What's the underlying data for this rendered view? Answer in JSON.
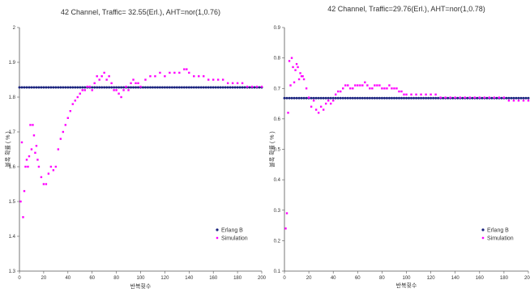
{
  "colors": {
    "erlang": "#1a237e",
    "simulation": "#ff00ff",
    "axis": "#555555",
    "text": "#333333"
  },
  "chart_data": [
    {
      "type": "line",
      "title": "42 Channel, Traffic= 32.55(Erl.), AHT=nor(1,0.76)",
      "xlabel": "반복횟수",
      "ylabel": "블록 확률 ( % )",
      "xlim": [
        0,
        200
      ],
      "ylim": [
        1.3,
        2.0
      ],
      "x_ticks": [
        0,
        20,
        40,
        60,
        80,
        100,
        120,
        140,
        160,
        180,
        200
      ],
      "y_ticks": [
        1.3,
        1.4,
        1.5,
        1.6,
        1.7,
        1.8,
        1.9,
        2.0
      ],
      "x_tick_labels": [
        "0",
        "20",
        "40",
        "60",
        "80",
        "100",
        "120",
        "140",
        "160",
        "180",
        "200"
      ],
      "y_tick_labels": [
        "1.3",
        "1.4",
        "1.5",
        "1.6",
        "1.7",
        "1.8",
        "1.9",
        "2"
      ],
      "legend_position": "lower-right",
      "grid": false,
      "series": [
        {
          "name": "Erlang B",
          "style": "line-markers",
          "constant": 1.828
        },
        {
          "name": "Simulation",
          "style": "markers",
          "x": [
            1,
            2,
            3,
            4,
            5,
            6,
            7,
            8,
            9,
            10,
            11,
            12,
            13,
            14,
            15,
            16,
            18,
            20,
            22,
            24,
            26,
            28,
            30,
            32,
            34,
            36,
            38,
            40,
            42,
            44,
            46,
            48,
            50,
            52,
            54,
            56,
            58,
            60,
            62,
            64,
            66,
            68,
            70,
            72,
            74,
            76,
            78,
            80,
            82,
            84,
            86,
            88,
            90,
            92,
            94,
            96,
            98,
            100,
            104,
            108,
            112,
            116,
            120,
            124,
            128,
            132,
            136,
            138,
            140,
            144,
            148,
            152,
            156,
            160,
            164,
            168,
            172,
            176,
            180,
            184,
            188,
            192,
            196,
            200
          ],
          "y": [
            1.5,
            1.67,
            1.455,
            1.53,
            1.6,
            1.62,
            1.6,
            1.63,
            1.72,
            1.65,
            1.72,
            1.69,
            1.64,
            1.66,
            1.62,
            1.6,
            1.57,
            1.55,
            1.55,
            1.58,
            1.6,
            1.59,
            1.6,
            1.65,
            1.68,
            1.7,
            1.72,
            1.74,
            1.76,
            1.78,
            1.79,
            1.8,
            1.81,
            1.82,
            1.82,
            1.83,
            1.83,
            1.82,
            1.84,
            1.86,
            1.85,
            1.86,
            1.87,
            1.85,
            1.86,
            1.84,
            1.82,
            1.82,
            1.81,
            1.8,
            1.82,
            1.83,
            1.82,
            1.84,
            1.85,
            1.84,
            1.84,
            1.83,
            1.85,
            1.86,
            1.86,
            1.87,
            1.86,
            1.87,
            1.87,
            1.87,
            1.88,
            1.88,
            1.87,
            1.86,
            1.86,
            1.86,
            1.85,
            1.85,
            1.85,
            1.85,
            1.84,
            1.84,
            1.84,
            1.84,
            1.83,
            1.83,
            1.83,
            1.83
          ]
        }
      ]
    },
    {
      "type": "line",
      "title": "42 Channel, Traffic=29.76(Erl.), AHT=nor(1,0.78)",
      "xlabel": "반복횟수",
      "ylabel": "블록 확률 ( % )",
      "xlim": [
        0,
        200
      ],
      "ylim": [
        0.1,
        0.9
      ],
      "x_ticks": [
        0,
        20,
        40,
        60,
        80,
        100,
        120,
        140,
        160,
        180,
        200
      ],
      "y_ticks": [
        0.1,
        0.2,
        0.3,
        0.4,
        0.5,
        0.6,
        0.7,
        0.8,
        0.9
      ],
      "x_tick_labels": [
        "0",
        "20",
        "40",
        "60",
        "80",
        "100",
        "120",
        "140",
        "160",
        "180",
        "200"
      ],
      "y_tick_labels": [
        "0.1",
        "0.2",
        "0.3",
        "0.4",
        "0.5",
        "0.6",
        "0.7",
        "0.8",
        "0.9"
      ],
      "legend_position": "lower-right",
      "grid": false,
      "series": [
        {
          "name": "Erlang B",
          "style": "line-markers",
          "constant": 0.668
        },
        {
          "name": "Simulation",
          "style": "markers",
          "x": [
            1,
            2,
            3,
            4,
            5,
            6,
            7,
            8,
            9,
            10,
            11,
            12,
            13,
            14,
            15,
            16,
            18,
            20,
            22,
            24,
            26,
            28,
            30,
            32,
            34,
            36,
            38,
            40,
            42,
            44,
            46,
            48,
            50,
            52,
            54,
            56,
            58,
            60,
            62,
            64,
            66,
            68,
            70,
            72,
            74,
            76,
            78,
            80,
            82,
            84,
            86,
            88,
            90,
            92,
            94,
            96,
            98,
            100,
            104,
            108,
            112,
            116,
            120,
            124,
            128,
            132,
            136,
            140,
            144,
            148,
            152,
            156,
            160,
            164,
            168,
            172,
            176,
            180,
            184,
            188,
            192,
            196,
            200
          ],
          "y": [
            0.24,
            0.29,
            0.62,
            0.79,
            0.71,
            0.8,
            0.77,
            0.72,
            0.76,
            0.78,
            0.77,
            0.73,
            0.75,
            0.74,
            0.74,
            0.73,
            0.7,
            0.67,
            0.64,
            0.66,
            0.63,
            0.62,
            0.64,
            0.63,
            0.65,
            0.66,
            0.65,
            0.66,
            0.68,
            0.69,
            0.69,
            0.7,
            0.71,
            0.71,
            0.7,
            0.7,
            0.71,
            0.71,
            0.71,
            0.71,
            0.72,
            0.71,
            0.7,
            0.7,
            0.71,
            0.71,
            0.71,
            0.7,
            0.7,
            0.7,
            0.71,
            0.7,
            0.7,
            0.7,
            0.69,
            0.69,
            0.68,
            0.68,
            0.68,
            0.68,
            0.68,
            0.68,
            0.68,
            0.68,
            0.67,
            0.67,
            0.67,
            0.67,
            0.67,
            0.67,
            0.67,
            0.67,
            0.67,
            0.67,
            0.67,
            0.67,
            0.67,
            0.67,
            0.66,
            0.66,
            0.66,
            0.66,
            0.66
          ]
        }
      ]
    }
  ]
}
